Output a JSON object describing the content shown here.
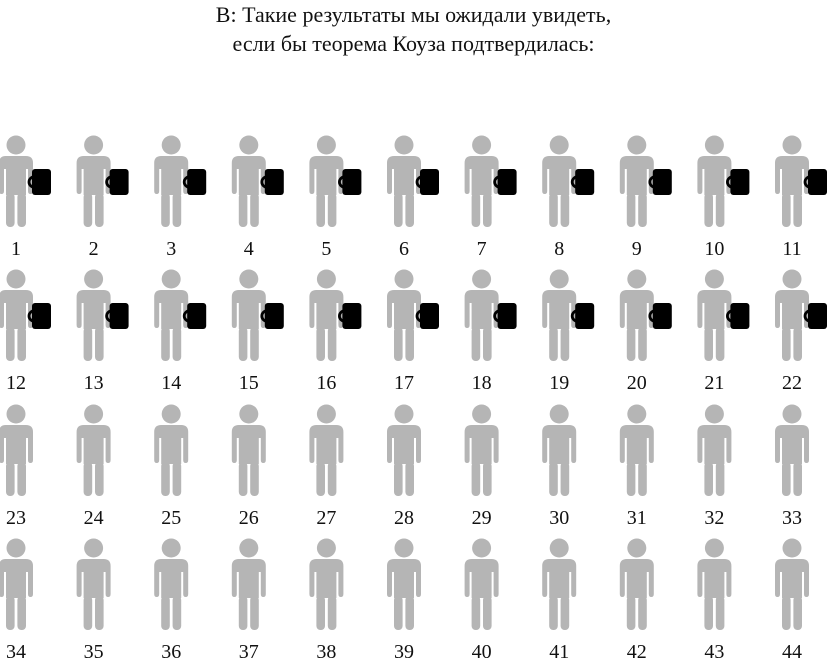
{
  "title": {
    "line1": "В: Такие результаты мы ожидали увидеть,",
    "line2": "если бы теорема Коуза подтвердилась:"
  },
  "colors": {
    "person": "#b5b5b5",
    "mug": "#000000",
    "text": "#111111"
  },
  "icons": {
    "person": "person-icon",
    "mug": "mug-icon"
  },
  "people": [
    {
      "number": "1",
      "has_mug": true
    },
    {
      "number": "2",
      "has_mug": true
    },
    {
      "number": "3",
      "has_mug": true
    },
    {
      "number": "4",
      "has_mug": true
    },
    {
      "number": "5",
      "has_mug": true
    },
    {
      "number": "6",
      "has_mug": true
    },
    {
      "number": "7",
      "has_mug": true
    },
    {
      "number": "8",
      "has_mug": true
    },
    {
      "number": "9",
      "has_mug": true
    },
    {
      "number": "10",
      "has_mug": true
    },
    {
      "number": "11",
      "has_mug": true
    },
    {
      "number": "12",
      "has_mug": true
    },
    {
      "number": "13",
      "has_mug": true
    },
    {
      "number": "14",
      "has_mug": true
    },
    {
      "number": "15",
      "has_mug": true
    },
    {
      "number": "16",
      "has_mug": true
    },
    {
      "number": "17",
      "has_mug": true
    },
    {
      "number": "18",
      "has_mug": true
    },
    {
      "number": "19",
      "has_mug": true
    },
    {
      "number": "20",
      "has_mug": true
    },
    {
      "number": "21",
      "has_mug": true
    },
    {
      "number": "22",
      "has_mug": true
    },
    {
      "number": "23",
      "has_mug": false
    },
    {
      "number": "24",
      "has_mug": false
    },
    {
      "number": "25",
      "has_mug": false
    },
    {
      "number": "26",
      "has_mug": false
    },
    {
      "number": "27",
      "has_mug": false
    },
    {
      "number": "28",
      "has_mug": false
    },
    {
      "number": "29",
      "has_mug": false
    },
    {
      "number": "30",
      "has_mug": false
    },
    {
      "number": "31",
      "has_mug": false
    },
    {
      "number": "32",
      "has_mug": false
    },
    {
      "number": "33",
      "has_mug": false
    },
    {
      "number": "34",
      "has_mug": false
    },
    {
      "number": "35",
      "has_mug": false
    },
    {
      "number": "36",
      "has_mug": false
    },
    {
      "number": "37",
      "has_mug": false
    },
    {
      "number": "38",
      "has_mug": false
    },
    {
      "number": "39",
      "has_mug": false
    },
    {
      "number": "40",
      "has_mug": false
    },
    {
      "number": "41",
      "has_mug": false
    },
    {
      "number": "42",
      "has_mug": false
    },
    {
      "number": "43",
      "has_mug": false
    },
    {
      "number": "44",
      "has_mug": false
    }
  ]
}
